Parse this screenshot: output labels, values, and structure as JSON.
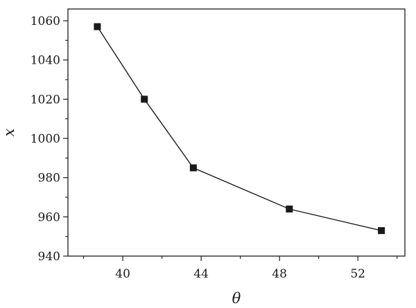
{
  "chart_data": {
    "type": "line",
    "title": "",
    "xlabel": "θ",
    "ylabel": "x",
    "xlim": [
      37.2,
      54.4
    ],
    "ylim": [
      940,
      1066
    ],
    "x_ticks": [
      40,
      44,
      48,
      52
    ],
    "x_tick_labels": [
      "40",
      "44",
      "48",
      "52"
    ],
    "y_ticks": [
      940,
      960,
      980,
      1000,
      1020,
      1040,
      1060
    ],
    "y_tick_labels": [
      "940",
      "960",
      "980",
      "1000",
      "1020",
      "1040",
      "1060"
    ],
    "grid": false,
    "marker": "square",
    "series": [
      {
        "x": [
          38.7,
          41.1,
          43.6,
          48.5,
          53.2
        ],
        "y": [
          1057,
          1020,
          985,
          964,
          953
        ],
        "color": "#1a1a1a"
      }
    ]
  }
}
